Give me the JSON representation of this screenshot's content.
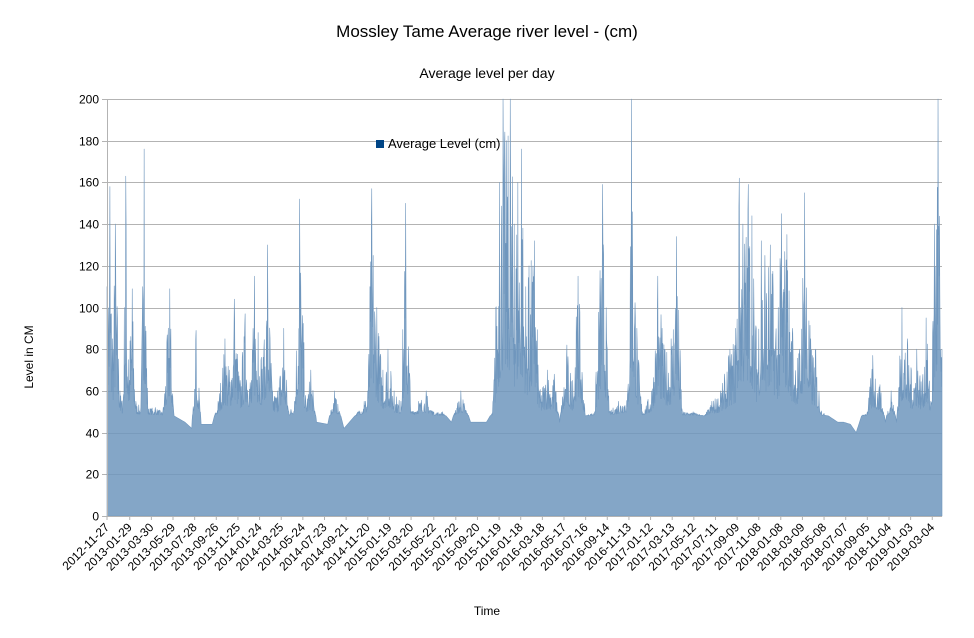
{
  "chart_data": {
    "type": "area",
    "title": "Mossley Tame Average river level  - (cm)",
    "subtitle": "Average level per day",
    "xlabel": "Time",
    "ylabel": "Level in CM",
    "ylim": [
      0,
      200
    ],
    "yticks": [
      0,
      20,
      40,
      60,
      80,
      100,
      120,
      140,
      160,
      180,
      200
    ],
    "grid": "horizontal",
    "legend_position": "top-center",
    "series_color": "#6f96bd",
    "legend_swatch_color": "#004586",
    "x_start": "2012-11-27",
    "x_end": "2019-03-31",
    "x_tick_labels": [
      "2012-11-27",
      "2013-01-29",
      "2013-03-30",
      "2013-05-29",
      "2013-07-28",
      "2013-09-26",
      "2013-11-25",
      "2014-01-24",
      "2014-03-25",
      "2014-05-24",
      "2014-07-23",
      "2014-09-21",
      "2014-11-20",
      "2015-01-19",
      "2015-03-20",
      "2015-05-22",
      "2015-07-22",
      "2015-09-20",
      "2015-11-19",
      "2016-01-18",
      "2016-03-18",
      "2016-05-17",
      "2016-07-16",
      "2016-09-14",
      "2016-11-13",
      "2017-01-12",
      "2017-03-13",
      "2017-05-12",
      "2017-07-11",
      "2017-09-09",
      "2017-11-08",
      "2018-01-08",
      "2018-03-09",
      "2018-05-08",
      "2018-07-07",
      "2018-09-05",
      "2018-11-04",
      "2019-01-03",
      "2019-03-04"
    ],
    "series": [
      {
        "name": "Average Level (cm)",
        "points": [
          [
            "2012-11-27",
            110
          ],
          [
            "2012-12-05",
            158
          ],
          [
            "2012-12-12",
            85
          ],
          [
            "2012-12-20",
            140
          ],
          [
            "2013-01-02",
            60
          ],
          [
            "2013-01-10",
            55
          ],
          [
            "2013-01-18",
            163
          ],
          [
            "2013-01-25",
            75
          ],
          [
            "2013-02-05",
            109
          ],
          [
            "2013-02-15",
            55
          ],
          [
            "2013-03-01",
            52
          ],
          [
            "2013-03-10",
            176
          ],
          [
            "2013-03-20",
            52
          ],
          [
            "2013-04-10",
            52
          ],
          [
            "2013-05-01",
            50
          ],
          [
            "2013-05-20",
            109
          ],
          [
            "2013-06-01",
            48
          ],
          [
            "2013-07-01",
            45
          ],
          [
            "2013-07-20",
            42
          ],
          [
            "2013-08-01",
            89
          ],
          [
            "2013-08-15",
            44
          ],
          [
            "2013-09-15",
            44
          ],
          [
            "2013-10-01",
            55
          ],
          [
            "2013-10-20",
            85
          ],
          [
            "2013-11-01",
            70
          ],
          [
            "2013-11-15",
            104
          ],
          [
            "2013-12-01",
            65
          ],
          [
            "2013-12-15",
            97
          ],
          [
            "2014-01-01",
            65
          ],
          [
            "2014-01-10",
            115
          ],
          [
            "2014-01-20",
            88
          ],
          [
            "2014-02-05",
            80
          ],
          [
            "2014-02-15",
            130
          ],
          [
            "2014-03-01",
            60
          ],
          [
            "2014-03-15",
            60
          ],
          [
            "2014-04-01",
            90
          ],
          [
            "2014-04-15",
            50
          ],
          [
            "2014-05-01",
            55
          ],
          [
            "2014-05-15",
            152
          ],
          [
            "2014-06-01",
            55
          ],
          [
            "2014-06-15",
            70
          ],
          [
            "2014-07-01",
            45
          ],
          [
            "2014-08-01",
            44
          ],
          [
            "2014-08-20",
            60
          ],
          [
            "2014-09-15",
            42
          ],
          [
            "2014-10-15",
            48
          ],
          [
            "2014-11-10",
            55
          ],
          [
            "2014-11-20",
            60
          ],
          [
            "2014-12-01",
            157
          ],
          [
            "2014-12-15",
            100
          ],
          [
            "2015-01-01",
            70
          ],
          [
            "2015-01-15",
            80
          ],
          [
            "2015-02-01",
            60
          ],
          [
            "2015-02-20",
            55
          ],
          [
            "2015-03-05",
            150
          ],
          [
            "2015-03-20",
            50
          ],
          [
            "2015-04-10",
            55
          ],
          [
            "2015-05-01",
            60
          ],
          [
            "2015-05-20",
            50
          ],
          [
            "2015-06-15",
            50
          ],
          [
            "2015-07-10",
            45
          ],
          [
            "2015-08-05",
            60
          ],
          [
            "2015-09-01",
            45
          ],
          [
            "2015-10-15",
            45
          ],
          [
            "2015-11-01",
            50
          ],
          [
            "2015-11-10",
            100
          ],
          [
            "2015-11-20",
            160
          ],
          [
            "2015-11-30",
            200
          ],
          [
            "2015-12-10",
            180
          ],
          [
            "2015-12-20",
            200
          ],
          [
            "2015-12-31",
            140
          ],
          [
            "2016-01-10",
            160
          ],
          [
            "2016-01-20",
            176
          ],
          [
            "2016-02-01",
            110
          ],
          [
            "2016-02-10",
            120
          ],
          [
            "2016-02-25",
            132
          ],
          [
            "2016-03-10",
            60
          ],
          [
            "2016-04-01",
            70
          ],
          [
            "2016-04-20",
            68
          ],
          [
            "2016-05-05",
            45
          ],
          [
            "2016-05-25",
            82
          ],
          [
            "2016-06-10",
            65
          ],
          [
            "2016-06-25",
            115
          ],
          [
            "2016-07-15",
            48
          ],
          [
            "2016-08-10",
            50
          ],
          [
            "2016-09-01",
            159
          ],
          [
            "2016-09-20",
            50
          ],
          [
            "2016-10-15",
            55
          ],
          [
            "2016-11-10",
            60
          ],
          [
            "2016-11-20",
            200
          ],
          [
            "2016-12-05",
            90
          ],
          [
            "2016-12-20",
            50
          ],
          [
            "2017-01-15",
            60
          ],
          [
            "2017-02-01",
            115
          ],
          [
            "2017-02-20",
            80
          ],
          [
            "2017-03-10",
            85
          ],
          [
            "2017-03-25",
            134
          ],
          [
            "2017-04-10",
            50
          ],
          [
            "2017-05-10",
            50
          ],
          [
            "2017-06-10",
            48
          ],
          [
            "2017-07-01",
            55
          ],
          [
            "2017-07-25",
            60
          ],
          [
            "2017-08-20",
            80
          ],
          [
            "2017-09-05",
            90
          ],
          [
            "2017-09-15",
            162
          ],
          [
            "2017-09-25",
            140
          ],
          [
            "2017-10-10",
            159
          ],
          [
            "2017-10-20",
            144
          ],
          [
            "2017-11-01",
            90
          ],
          [
            "2017-11-15",
            132
          ],
          [
            "2017-11-25",
            125
          ],
          [
            "2017-12-10",
            130
          ],
          [
            "2018-01-01",
            100
          ],
          [
            "2018-01-10",
            145
          ],
          [
            "2018-01-25",
            135
          ],
          [
            "2018-02-10",
            90
          ],
          [
            "2018-03-01",
            80
          ],
          [
            "2018-03-15",
            155
          ],
          [
            "2018-04-01",
            85
          ],
          [
            "2018-04-15",
            80
          ],
          [
            "2018-05-01",
            50
          ],
          [
            "2018-05-20",
            48
          ],
          [
            "2018-06-15",
            45
          ],
          [
            "2018-07-01",
            45
          ],
          [
            "2018-07-20",
            44
          ],
          [
            "2018-08-05",
            40
          ],
          [
            "2018-08-20",
            48
          ],
          [
            "2018-09-05",
            50
          ],
          [
            "2018-09-20",
            77
          ],
          [
            "2018-10-10",
            63
          ],
          [
            "2018-10-25",
            45
          ],
          [
            "2018-11-10",
            60
          ],
          [
            "2018-11-25",
            45
          ],
          [
            "2018-12-10",
            100
          ],
          [
            "2018-12-25",
            85
          ],
          [
            "2019-01-05",
            70
          ],
          [
            "2019-01-20",
            80
          ],
          [
            "2019-02-05",
            65
          ],
          [
            "2019-02-15",
            95
          ],
          [
            "2019-02-28",
            55
          ],
          [
            "2019-03-10",
            140
          ],
          [
            "2019-03-20",
            200
          ],
          [
            "2019-03-31",
            80
          ]
        ]
      }
    ]
  }
}
